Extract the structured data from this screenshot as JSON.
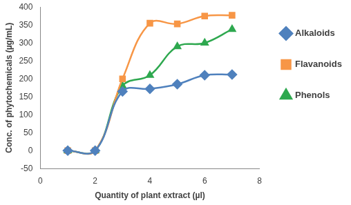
{
  "chart_data": {
    "type": "line",
    "x_label": "Quantity of plant extract (µl)",
    "y_label": "Conc. of phytochemicals (µg/mL)",
    "x": [
      1,
      2,
      3,
      4,
      5,
      6,
      7
    ],
    "series": [
      {
        "name": "Alkaloids",
        "color": "#4f81bd",
        "marker": "diamond",
        "line_style": "solid",
        "values": [
          0,
          0,
          165,
          172,
          185,
          210,
          212
        ]
      },
      {
        "name": "Flavanoids",
        "color": "#f79646",
        "marker": "square",
        "line_style": "solid",
        "values": [
          0,
          0,
          200,
          355,
          353,
          375,
          377
        ]
      },
      {
        "name": "Phenols",
        "color": "#2ea84f",
        "marker": "triangle",
        "line_style": "solid",
        "values": [
          0,
          0,
          180,
          210,
          290,
          300,
          338
        ]
      }
    ],
    "xlim": [
      0,
      8
    ],
    "xticks": [
      0,
      2,
      4,
      6,
      8
    ],
    "ylim": [
      -50,
      400
    ],
    "yticks": [
      -50,
      0,
      50,
      100,
      150,
      200,
      250,
      300,
      350,
      400
    ],
    "grid": false,
    "legend": "right"
  }
}
